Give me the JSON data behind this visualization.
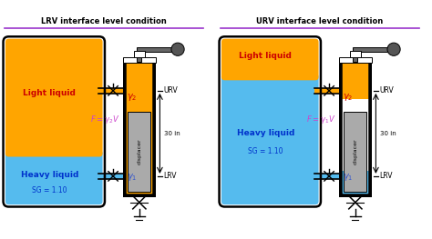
{
  "title_left": "LRV interface level condition",
  "title_right": "URV interface level condition",
  "title_color": "#000000",
  "title_underline_color": "#9933cc",
  "bg_color": "#ffffff",
  "orange_color": "#FFA500",
  "blue_color": "#55BBEE",
  "displacer_color": "#aaaaaa",
  "light_liquid_text_color": "#cc0000",
  "heavy_liquid_text_color": "#0033cc",
  "sg_orange_color": "#FFA500",
  "formula_color": "#cc44cc",
  "formula_lrv": "$F = \\gamma_2 V$",
  "formula_urv": "$F = \\gamma_1 V$",
  "gamma2_label": "$\\gamma_2$",
  "gamma1_label": "$\\gamma_1$",
  "urv_label": "URV",
  "lrv_label": "LRV",
  "dim_label": "30 in",
  "displacer_label": "displacer",
  "dark": "#000000",
  "sensor_gray": "#666666"
}
